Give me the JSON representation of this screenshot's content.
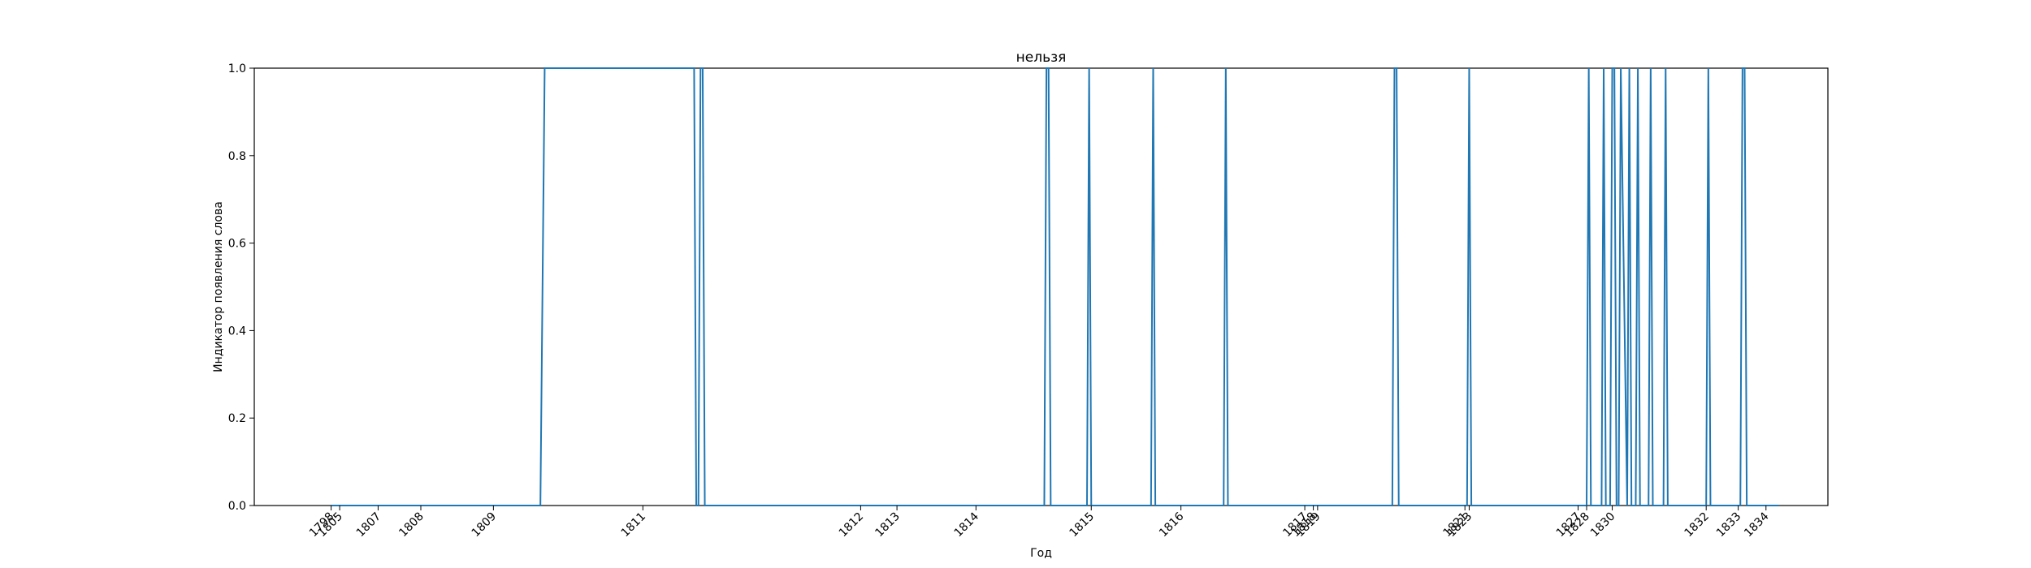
{
  "chart_data": {
    "type": "line",
    "title": "нельзя",
    "xlabel": "Год",
    "ylabel": "Индикатор появления слова",
    "ylim": [
      0,
      1.0
    ],
    "yticks": [
      "0.0",
      "0.2",
      "0.4",
      "0.6",
      "0.8",
      "1.0"
    ],
    "xlim": [
      1799.6,
      1836.45
    ],
    "xticks": [
      {
        "label": "1798",
        "x": 1801.4
      },
      {
        "label": "1805",
        "x": 1801.6
      },
      {
        "label": "1807",
        "x": 1802.5
      },
      {
        "label": "1808",
        "x": 1803.5
      },
      {
        "label": "1809",
        "x": 1805.2
      },
      {
        "label": "1811",
        "x": 1808.7
      },
      {
        "label": "1812",
        "x": 1813.8
      },
      {
        "label": "1813",
        "x": 1814.65
      },
      {
        "label": "1814",
        "x": 1816.5
      },
      {
        "label": "1815",
        "x": 1819.2
      },
      {
        "label": "1816",
        "x": 1821.3
      },
      {
        "label": "1817",
        "x": 1824.2
      },
      {
        "label": "1818",
        "x": 1824.4
      },
      {
        "label": "1819",
        "x": 1824.5
      },
      {
        "label": "1821",
        "x": 1827.95
      },
      {
        "label": "1823",
        "x": 1828.05
      },
      {
        "label": "1827",
        "x": 1830.6
      },
      {
        "label": "1828",
        "x": 1830.8
      },
      {
        "label": "1830",
        "x": 1831.4
      },
      {
        "label": "1832",
        "x": 1833.6
      },
      {
        "label": "1833",
        "x": 1834.35
      },
      {
        "label": "1834",
        "x": 1835.0
      }
    ],
    "series": [
      {
        "color": "#1f77b4",
        "x": [
          1801.4,
          1806.3,
          1806.4,
          1809.9,
          1809.95,
          1810.0,
          1810.05,
          1810.1,
          1810.15,
          1818.1,
          1818.15,
          1818.2,
          1818.25,
          1819.1,
          1819.15,
          1819.2,
          1820.6,
          1820.65,
          1820.7,
          1822.3,
          1822.35,
          1822.4,
          1826.25,
          1826.3,
          1826.35,
          1826.4,
          1828.0,
          1828.05,
          1828.1,
          1830.8,
          1830.85,
          1830.9,
          1831.15,
          1831.2,
          1831.25,
          1831.35,
          1831.4,
          1831.45,
          1831.5,
          1831.55,
          1831.6,
          1831.75,
          1831.8,
          1831.85,
          1831.95,
          1832.0,
          1832.05,
          1832.25,
          1832.3,
          1832.35,
          1832.6,
          1832.65,
          1832.7,
          1833.6,
          1833.65,
          1833.7,
          1834.4,
          1834.45,
          1834.5,
          1834.55,
          1835.3
        ],
        "y": [
          0,
          0,
          1,
          1,
          0,
          0,
          1,
          1,
          0,
          0,
          1,
          1,
          0,
          0,
          1,
          0,
          0,
          1,
          0,
          0,
          1,
          0,
          0,
          1,
          1,
          0,
          0,
          1,
          0,
          0,
          1,
          0,
          0,
          1,
          0,
          0,
          1,
          1,
          0,
          0,
          1,
          0,
          1,
          0,
          0,
          1,
          0,
          0,
          1,
          0,
          0,
          1,
          0,
          0,
          1,
          0,
          0,
          1,
          1,
          0,
          0
        ]
      }
    ]
  }
}
